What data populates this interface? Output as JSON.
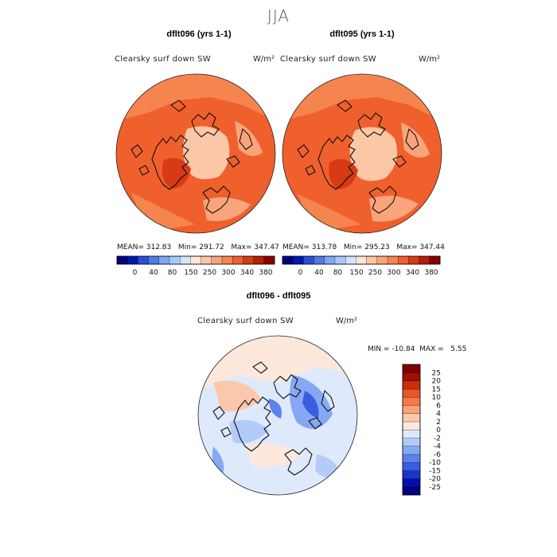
{
  "title": "JJA",
  "panels": [
    {
      "title": "dflt096 (yrs 1-1)",
      "var_label": "Clearsky surf down SW",
      "units": "W/m²",
      "stats": {
        "mean": "312.83",
        "min": "291.72",
        "max": "347.47"
      }
    },
    {
      "title": "dflt095 (yrs 1-1)",
      "var_label": "Clearsky surf down SW",
      "units": "W/m²",
      "stats": {
        "mean": "313.78",
        "min": "295.23",
        "max": "347.44"
      }
    },
    {
      "title": "dflt096 - dflt095",
      "var_label": "Clearsky surf down SW",
      "units": "W/m²",
      "stats": {
        "min": "-10.84",
        "max": "5.55"
      }
    }
  ],
  "stat_labels": {
    "mean": "MEAN=",
    "min": "Min=",
    "max": "Max=",
    "min_upper": "MIN =",
    "max_upper": "MAX ="
  },
  "chart_data": [
    {
      "type": "heatmap",
      "projection": "polar stereographic, north pole",
      "title": "dflt096 (yrs 1-1)",
      "colorbar": {
        "orientation": "horizontal",
        "colors": [
          "#00007f",
          "#0018b0",
          "#2c4fd6",
          "#4f7ae8",
          "#7ea6f2",
          "#a9c8f7",
          "#d3e5fb",
          "#fde6d6",
          "#fbc7a6",
          "#f9a47c",
          "#f6844f",
          "#f0602c",
          "#d83a16",
          "#b51e08",
          "#8b0000"
        ],
        "tick_labels": [
          "0",
          "40",
          "80",
          "150",
          "250",
          "300",
          "340",
          "380"
        ]
      },
      "dominant_range": [
        300,
        340
      ]
    },
    {
      "type": "heatmap",
      "projection": "polar stereographic, north pole",
      "title": "dflt095 (yrs 1-1)",
      "colorbar": {
        "orientation": "horizontal",
        "colors": [
          "#00007f",
          "#0018b0",
          "#2c4fd6",
          "#4f7ae8",
          "#7ea6f2",
          "#a9c8f7",
          "#d3e5fb",
          "#fde6d6",
          "#fbc7a6",
          "#f9a47c",
          "#f6844f",
          "#f0602c",
          "#d83a16",
          "#b51e08",
          "#8b0000"
        ],
        "tick_labels": [
          "0",
          "40",
          "80",
          "150",
          "250",
          "300",
          "340",
          "380"
        ]
      },
      "dominant_range": [
        300,
        340
      ]
    },
    {
      "type": "heatmap",
      "projection": "polar stereographic, north pole",
      "title": "dflt096 - dflt095",
      "colorbar": {
        "orientation": "vertical",
        "colors": [
          "#000080",
          "#0010a8",
          "#1a36c8",
          "#3a5ee0",
          "#5b82ec",
          "#86a8f4",
          "#b3cbf9",
          "#dfe9fc",
          "#fde8dc",
          "#fbc8ac",
          "#f8a27a",
          "#f47b49",
          "#ea5424",
          "#cc2e0c",
          "#a01000",
          "#800000"
        ],
        "tick_labels": [
          "-25",
          "-20",
          "-15",
          "-10",
          "-6",
          "-4",
          "-2",
          "0",
          "2",
          "4",
          "6",
          "10",
          "15",
          "20",
          "25"
        ]
      }
    }
  ]
}
